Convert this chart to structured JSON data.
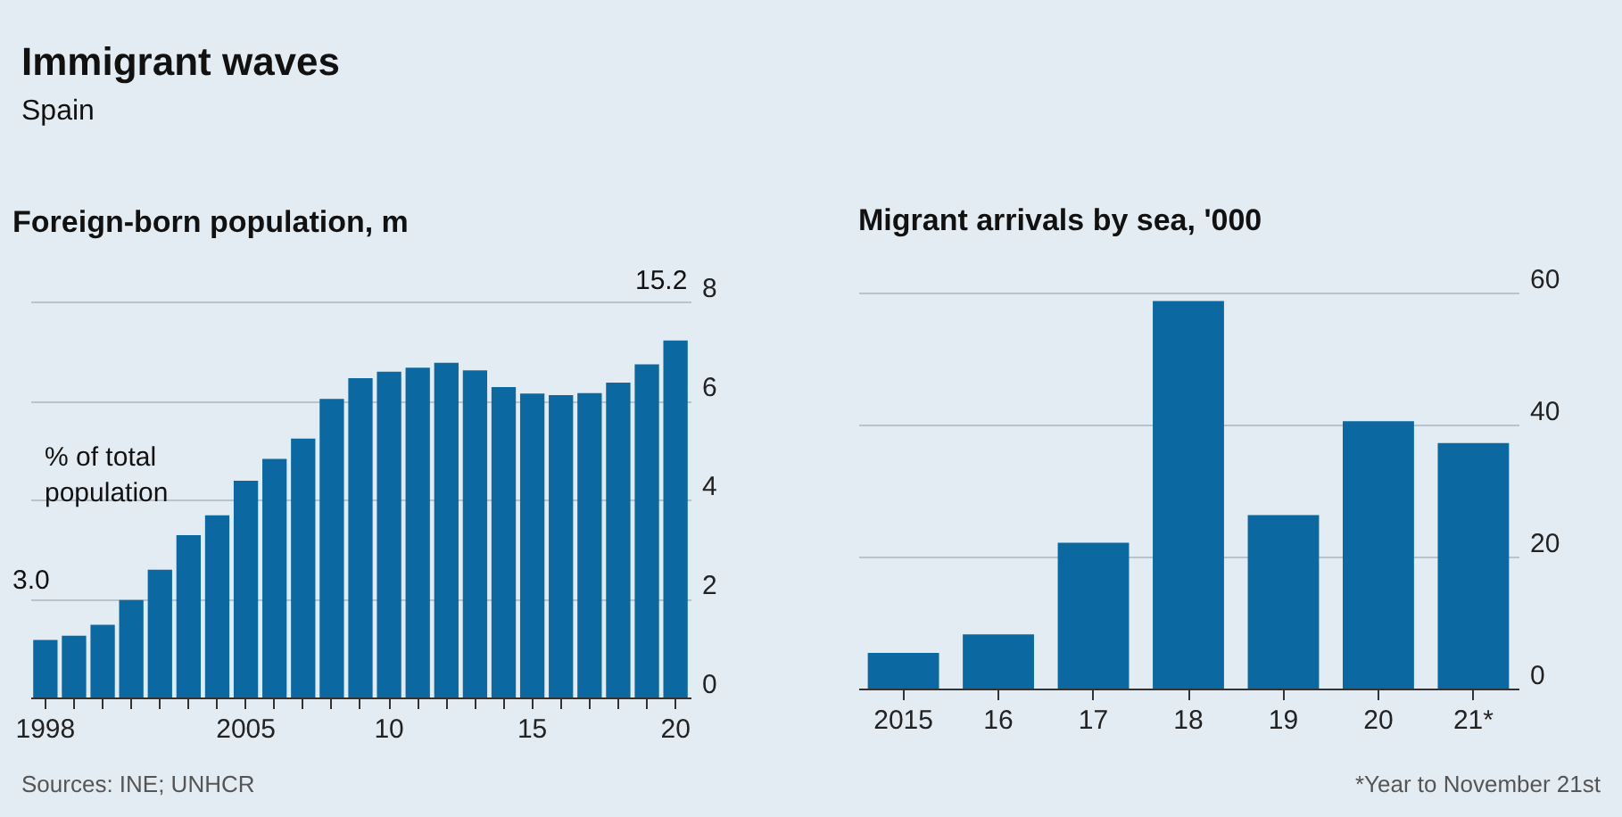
{
  "chart_data": [
    {
      "type": "other",
      "title": "Immigrant waves",
      "subtitle": "Spain"
    },
    {
      "type": "bar",
      "title": "Foreign-born population, m",
      "categories": [
        "1998",
        null,
        null,
        null,
        null,
        null,
        null,
        "2005",
        null,
        null,
        null,
        null,
        "10",
        null,
        null,
        null,
        null,
        "15",
        null,
        null,
        null,
        null,
        "20"
      ],
      "color": "#0b68a0",
      "values": [
        1.16,
        1.25,
        1.47,
        1.97,
        2.58,
        3.28,
        3.68,
        4.38,
        4.82,
        5.23,
        6.03,
        6.45,
        6.58,
        6.66,
        6.76,
        6.61,
        6.27,
        6.14,
        6.11,
        6.15,
        6.36,
        6.73,
        7.21
      ],
      "ylim": [
        0,
        8
      ],
      "yticks": [
        0,
        2,
        4,
        6,
        8
      ],
      "grid": "y",
      "annotations": [
        "% of total population",
        {
          "text": "3.0",
          "x": "1998",
          "y": 1.16
        },
        {
          "text": "15.2",
          "x": "20",
          "y": 7.21
        },
        "Sources: INE; UNHCR"
      ]
    },
    {
      "type": "bar",
      "title": "Migrant arrivals by sea, '000",
      "categories": [
        "2015",
        "16",
        "17",
        "18",
        "19",
        "20",
        "21*"
      ],
      "color": "#0b68a0",
      "values": [
        5.4,
        8.2,
        22.1,
        58.7,
        26.3,
        40.5,
        37.2
      ],
      "ylim": [
        0,
        60
      ],
      "yticks": [
        0,
        20,
        40,
        60
      ],
      "grid": "y",
      "annotations": [
        "*Year to November 21st"
      ]
    }
  ]
}
